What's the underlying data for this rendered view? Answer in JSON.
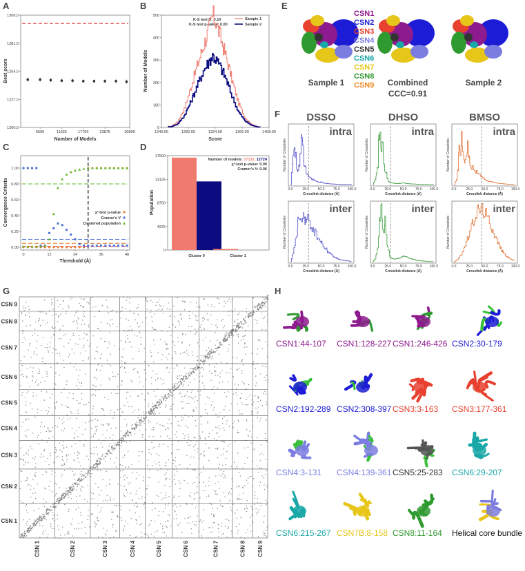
{
  "panel_labels": [
    "A",
    "B",
    "C",
    "D",
    "E",
    "F",
    "G",
    "H"
  ],
  "colors": {
    "csn1": "#8e1a8f",
    "csn2": "#1c1cd6",
    "csn3": "#e8412f",
    "csn4": "#7b7de0",
    "csn5": "#333333",
    "csn6": "#1aa7a7",
    "csn7": "#e6c619",
    "csn8": "#2f9a2f",
    "csn9": "#f28a22",
    "sample1": "#f07a6e",
    "sample2": "#0c0c80",
    "dsso": "#4a4ac8",
    "dhso": "#3a9a3a",
    "bmso": "#e07030"
  },
  "chart_data": [
    {
      "id": "A",
      "type": "scatter",
      "title": "",
      "xlabel": "Number of Models",
      "ylabel": "Best score",
      "xlim": [
        0,
        30899
      ],
      "ylim": [
        1200,
        1308
      ],
      "xticks": [
        "5500",
        "11625",
        "17750",
        "23875",
        "30899"
      ],
      "yticks": [
        "1200.0",
        "1227.0",
        "1254.0",
        "1281.0",
        "1308.0"
      ],
      "x": [
        2000,
        5500,
        8500,
        11625,
        14700,
        17750,
        20800,
        23875,
        27000,
        30000
      ],
      "y": [
        1246,
        1246,
        1245.5,
        1245,
        1245,
        1244.5,
        1244.5,
        1244.5,
        1244.5,
        1244
      ],
      "reference_line": 1300
    },
    {
      "id": "B",
      "type": "line",
      "xlabel": "Score",
      "ylabel": "Number of Models",
      "xlim": [
        1240,
        1408
      ],
      "ylim": [
        0,
        500
      ],
      "xticks": [
        "1240.00",
        "1282.00",
        "1324.00",
        "1366.00",
        "1408.00"
      ],
      "yticks": [
        "0",
        "100",
        "200",
        "300",
        "400",
        "500"
      ],
      "annotations": [
        "K-S test D: 0.10",
        "K-S test p-value: 0.00"
      ],
      "series": [
        {
          "name": "Sample 1",
          "x": [
            1255,
            1265,
            1275,
            1285,
            1295,
            1305,
            1315,
            1320,
            1325,
            1330,
            1340,
            1350,
            1360,
            1370,
            1380,
            1390
          ],
          "values": [
            5,
            25,
            80,
            170,
            270,
            360,
            450,
            500,
            470,
            420,
            320,
            210,
            110,
            45,
            15,
            3
          ]
        },
        {
          "name": "Sample 2",
          "x": [
            1255,
            1265,
            1275,
            1285,
            1295,
            1305,
            1315,
            1320,
            1325,
            1330,
            1340,
            1350,
            1360,
            1370,
            1380,
            1390
          ],
          "values": [
            3,
            15,
            50,
            110,
            180,
            250,
            300,
            320,
            300,
            280,
            220,
            140,
            70,
            30,
            10,
            2
          ]
        }
      ]
    },
    {
      "id": "C",
      "type": "scatter",
      "xlabel": "Threshold (Å)",
      "ylabel": "Convergence Criteria",
      "xlim": [
        0,
        48
      ],
      "ylim": [
        0,
        1
      ],
      "xticks": [
        "0",
        "12",
        "24",
        "36",
        "48"
      ],
      "yticks": [
        "0.00",
        "0.20",
        "0.40",
        "0.60",
        "0.80",
        "1.00"
      ],
      "legend": [
        "χ²-test p-value",
        "Cramer's V",
        "Clustered population"
      ],
      "threshold_line": 30,
      "series": [
        {
          "name": "χ²-test p-value",
          "x": [
            0,
            2,
            4,
            6,
            8,
            10,
            12,
            14,
            16,
            18,
            20,
            22,
            24,
            26,
            28,
            30,
            32,
            34,
            36,
            38,
            40,
            42,
            44,
            46,
            48
          ],
          "values": [
            0,
            0,
            0,
            0,
            0,
            0,
            0,
            0,
            0,
            0,
            0,
            0,
            0,
            0,
            0,
            1,
            1,
            1,
            1,
            1,
            1,
            1,
            1,
            1,
            1
          ]
        },
        {
          "name": "Cramer's V",
          "x": [
            0,
            2,
            4,
            6,
            8,
            10,
            12,
            14,
            16,
            18,
            20,
            22,
            24,
            26,
            28,
            30,
            32,
            34,
            36,
            38,
            40,
            42,
            44,
            46,
            48
          ],
          "values": [
            1,
            1,
            1,
            1,
            0.02,
            0.02,
            0.18,
            0.24,
            0.3,
            0.28,
            0.22,
            0.16,
            0.1,
            0.04,
            0.02,
            0.02,
            0.02,
            0.02,
            0.02,
            0.02,
            0.02,
            0.02,
            0.02,
            0.02,
            0.02
          ]
        },
        {
          "name": "Clustered population",
          "x": [
            0,
            2,
            4,
            6,
            8,
            10,
            12,
            14,
            16,
            18,
            20,
            22,
            24,
            26,
            28,
            30,
            32,
            34,
            36,
            38,
            40,
            42,
            44,
            46,
            48
          ],
          "values": [
            0.01,
            0.01,
            0.01,
            0.01,
            0.01,
            0.02,
            0.1,
            0.42,
            0.75,
            0.86,
            0.92,
            0.95,
            0.97,
            0.98,
            0.99,
            1,
            1,
            1,
            1,
            1,
            1,
            1,
            1,
            1,
            1
          ]
        }
      ]
    },
    {
      "id": "D",
      "type": "bar",
      "xlabel": "",
      "ylabel": "Population",
      "ylim": [
        0,
        17500
      ],
      "yticks": [
        "0",
        "4375",
        "8750",
        "13125",
        "17500"
      ],
      "categories": [
        "Cluster 0",
        "Cluster 1"
      ],
      "annotations": [
        "Number of models: ",
        "17132, ",
        "12724",
        "χ²-test p-value: 0.00",
        "Cramer's V: 0.06"
      ],
      "series": [
        {
          "name": "",
          "values": [
            17132,
            200
          ]
        },
        {
          "name": "",
          "values": [
            12724,
            0
          ]
        }
      ]
    }
  ],
  "panel_e": {
    "legend": [
      "CSN1",
      "CSN2",
      "CSN3",
      "CSN4",
      "CSN5",
      "CSN6",
      "CSN7",
      "CSN8",
      "CSN9"
    ],
    "titles": [
      "Sample 1",
      "Combined",
      "CCC=0.91",
      "Sample 2"
    ]
  },
  "panel_f": {
    "columns": [
      "DSSO",
      "DHSO",
      "BMSO"
    ],
    "rows": [
      "intra",
      "inter"
    ],
    "xlabel": "Crosslink distance (Å)",
    "ylabel": "Number of Crosslinks",
    "xticks": [
      "0.0",
      "25.0",
      "50.0",
      "75.0",
      "100.0"
    ]
  },
  "panel_g": {
    "labels": [
      "CSN 1",
      "CSN 2",
      "CSN 3",
      "CSN 4",
      "CSN 5",
      "CSN 6",
      "CSN 7",
      "CSN 8",
      "CSN 9"
    ]
  },
  "panel_h": {
    "labels": [
      "CSN1:44-107",
      "CSN1:128-227",
      "CSN1:246-426",
      "CSN2:30-179",
      "CSN2:192-289",
      "CSN2:308-397",
      "CSN3:3-163",
      "CSN3:177-361",
      "CSN4:3-131",
      "CSN4:139-361",
      "CSN5:25-283",
      "CSN6:29-207",
      "CSN6:215-267",
      "CSN7B:8-158",
      "CSN8:11-164",
      "Helical core bundle"
    ]
  }
}
